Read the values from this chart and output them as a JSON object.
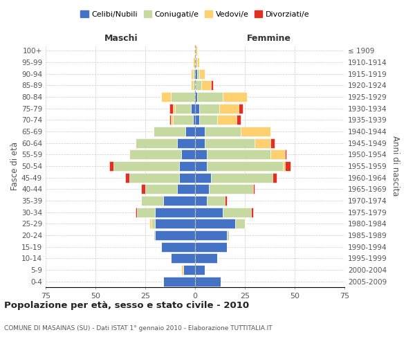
{
  "age_groups": [
    "0-4",
    "5-9",
    "10-14",
    "15-19",
    "20-24",
    "25-29",
    "30-34",
    "35-39",
    "40-44",
    "45-49",
    "50-54",
    "55-59",
    "60-64",
    "65-69",
    "70-74",
    "75-79",
    "80-84",
    "85-89",
    "90-94",
    "95-99",
    "100+"
  ],
  "birth_years": [
    "2005-2009",
    "2000-2004",
    "1995-1999",
    "1990-1994",
    "1985-1989",
    "1980-1984",
    "1975-1979",
    "1970-1974",
    "1965-1969",
    "1960-1964",
    "1955-1959",
    "1950-1954",
    "1945-1949",
    "1940-1944",
    "1935-1939",
    "1930-1934",
    "1925-1929",
    "1920-1924",
    "1915-1919",
    "1910-1914",
    "≤ 1909"
  ],
  "colors": {
    "celibe": "#4472C4",
    "coniugato": "#C5D9A0",
    "vedovo": "#FFD070",
    "divorziato": "#E03020"
  },
  "maschi": {
    "celibe": [
      16,
      6,
      12,
      17,
      20,
      20,
      20,
      16,
      9,
      8,
      8,
      7,
      9,
      5,
      1,
      2,
      0,
      0,
      0,
      0,
      0
    ],
    "coniugato": [
      0,
      0,
      0,
      0,
      1,
      2,
      9,
      11,
      16,
      25,
      33,
      26,
      21,
      16,
      10,
      8,
      12,
      1,
      1,
      0,
      0
    ],
    "vedovo": [
      0,
      1,
      0,
      0,
      0,
      1,
      0,
      0,
      0,
      0,
      0,
      0,
      0,
      0,
      1,
      1,
      5,
      1,
      1,
      1,
      0
    ],
    "divorziato": [
      0,
      0,
      0,
      0,
      0,
      0,
      1,
      0,
      2,
      2,
      2,
      0,
      0,
      0,
      1,
      2,
      0,
      0,
      0,
      0,
      0
    ]
  },
  "femmine": {
    "celibe": [
      13,
      5,
      11,
      16,
      16,
      20,
      14,
      6,
      7,
      8,
      6,
      6,
      5,
      5,
      2,
      2,
      1,
      0,
      1,
      0,
      0
    ],
    "coniugato": [
      0,
      0,
      0,
      0,
      1,
      5,
      14,
      9,
      22,
      31,
      38,
      32,
      25,
      18,
      9,
      10,
      13,
      3,
      1,
      1,
      0
    ],
    "vedovo": [
      0,
      0,
      0,
      0,
      0,
      0,
      0,
      0,
      0,
      0,
      1,
      7,
      8,
      15,
      10,
      10,
      12,
      5,
      3,
      1,
      1
    ],
    "divorziato": [
      0,
      0,
      0,
      0,
      0,
      0,
      1,
      1,
      1,
      2,
      3,
      1,
      2,
      0,
      2,
      2,
      0,
      1,
      0,
      0,
      0
    ]
  },
  "title": "Popolazione per età, sesso e stato civile - 2010",
  "subtitle": "COMUNE DI MASAINAS (SU) - Dati ISTAT 1° gennaio 2010 - Elaborazione TUTTITALIA.IT",
  "xlabel_left": "Maschi",
  "xlabel_right": "Femmine",
  "ylabel_left": "Fasce di età",
  "ylabel_right": "Anni di nascita",
  "xlim": 75,
  "legend_labels": [
    "Celibi/Nubili",
    "Coniugati/e",
    "Vedovi/e",
    "Divorziati/e"
  ],
  "background_color": "#FFFFFF"
}
